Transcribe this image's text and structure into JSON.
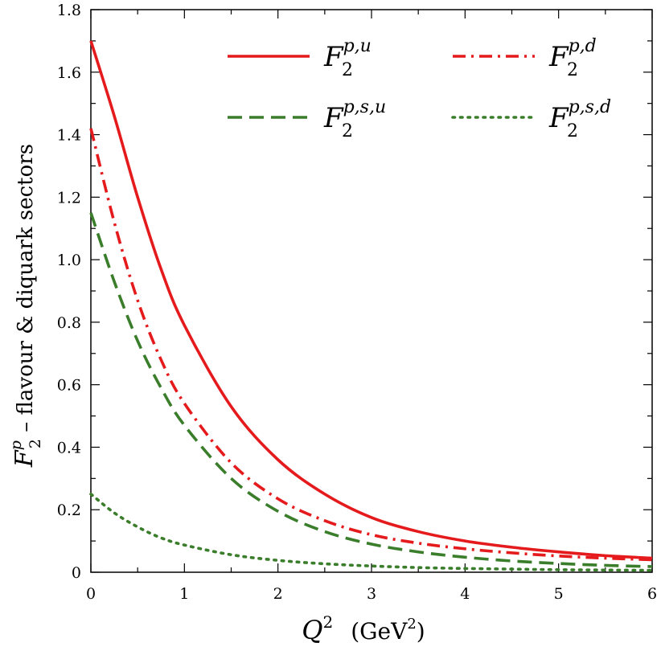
{
  "chart_data": {
    "type": "line",
    "xlabel": {
      "main": "Q",
      "main_sup": "2",
      "unit_open": "(GeV",
      "unit_sup": "2",
      "unit_close": ")"
    },
    "ylabel": {
      "main": "F",
      "main_sup": "p",
      "main_sub": "2",
      "rest": " – flavour & diquark sectors"
    },
    "xlim": [
      0,
      6
    ],
    "ylim": [
      0,
      1.8
    ],
    "x_ticks": [
      0,
      1,
      2,
      3,
      4,
      5,
      6
    ],
    "x_tick_labels": [
      "0",
      "1",
      "2",
      "3",
      "4",
      "5",
      "6"
    ],
    "y_ticks": [
      0,
      0.2,
      0.4,
      0.6,
      0.8,
      1.0,
      1.2,
      1.4,
      1.6,
      1.8
    ],
    "y_tick_labels": [
      "0",
      "0.2",
      "0.4",
      "0.6",
      "0.8",
      "1.0",
      "1.2",
      "1.4",
      "1.6",
      "1.8"
    ],
    "grid": false,
    "legend_position": "top-right",
    "series": [
      {
        "name": "F₂^{p,u}",
        "label_main": "F",
        "label_sub": "2",
        "label_sup": "p,u",
        "color": "#e41a1c",
        "style": "solid",
        "x": [
          0,
          0.25,
          0.5,
          0.75,
          1.0,
          1.5,
          2.0,
          2.5,
          3.0,
          3.5,
          4.0,
          4.5,
          5.0,
          5.5,
          6.0
        ],
        "y": [
          1.7,
          1.46,
          1.2,
          0.97,
          0.79,
          0.53,
          0.36,
          0.25,
          0.175,
          0.13,
          0.1,
          0.08,
          0.065,
          0.053,
          0.045
        ]
      },
      {
        "name": "F₂^{p,d}",
        "label_main": "F",
        "label_sub": "2",
        "label_sup": "p,d",
        "color": "#e41a1c",
        "style": "dashdot",
        "x": [
          0,
          0.25,
          0.5,
          0.75,
          1.0,
          1.5,
          2.0,
          2.5,
          3.0,
          3.5,
          4.0,
          4.5,
          5.0,
          5.5,
          6.0
        ],
        "y": [
          1.42,
          1.12,
          0.87,
          0.68,
          0.54,
          0.35,
          0.235,
          0.165,
          0.12,
          0.093,
          0.075,
          0.062,
          0.052,
          0.045,
          0.04
        ]
      },
      {
        "name": "F₂^{p,s,u}",
        "label_main": "F",
        "label_sub": "2",
        "label_sup": "p,s,u",
        "color": "#3a7d2a",
        "style": "dashed",
        "x": [
          0,
          0.25,
          0.5,
          0.75,
          1.0,
          1.5,
          2.0,
          2.5,
          3.0,
          3.5,
          4.0,
          4.5,
          5.0,
          5.5,
          6.0
        ],
        "y": [
          1.15,
          0.93,
          0.74,
          0.59,
          0.47,
          0.3,
          0.195,
          0.13,
          0.09,
          0.065,
          0.048,
          0.036,
          0.028,
          0.022,
          0.018
        ]
      },
      {
        "name": "F₂^{p,s,d}",
        "label_main": "F",
        "label_sub": "2",
        "label_sup": "p,s,d",
        "color": "#3a7d2a",
        "style": "dotted",
        "x": [
          0,
          0.25,
          0.5,
          0.75,
          1.0,
          1.5,
          2.0,
          2.5,
          3.0,
          3.5,
          4.0,
          4.5,
          5.0,
          5.5,
          6.0
        ],
        "y": [
          0.25,
          0.19,
          0.145,
          0.11,
          0.087,
          0.056,
          0.038,
          0.027,
          0.02,
          0.015,
          0.012,
          0.01,
          0.008,
          0.007,
          0.006
        ]
      }
    ]
  }
}
